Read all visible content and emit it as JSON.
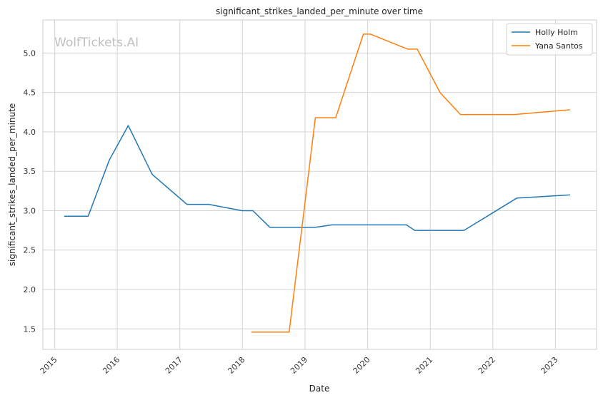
{
  "chart_data": {
    "type": "line",
    "title": "significant_strikes_landed_per_minute over time",
    "xlabel": "Date",
    "ylabel": "significant_strikes_landed_per_minute",
    "watermark": "WolfTickets.AI",
    "x_ticks": [
      "2015",
      "2016",
      "2017",
      "2018",
      "2019",
      "2020",
      "2021",
      "2022",
      "2023"
    ],
    "y_ticks": [
      "1.5",
      "2.0",
      "2.5",
      "3.0",
      "3.5",
      "4.0",
      "4.5",
      "5.0"
    ],
    "xlim": [
      "2014-10-24",
      "2023-08-29"
    ],
    "ylim": [
      1.24,
      5.42
    ],
    "grid": true,
    "legend_position": "top-right",
    "series": [
      {
        "name": "Holly Holm",
        "color": "#1f77b4",
        "points": [
          [
            "2015-02-28",
            2.93
          ],
          [
            "2015-07-15",
            2.93
          ],
          [
            "2015-11-15",
            3.64
          ],
          [
            "2016-03-05",
            4.08
          ],
          [
            "2016-07-23",
            3.46
          ],
          [
            "2017-02-11",
            3.08
          ],
          [
            "2017-06-17",
            3.08
          ],
          [
            "2017-12-30",
            3.0
          ],
          [
            "2018-03-03",
            3.0
          ],
          [
            "2018-06-09",
            2.79
          ],
          [
            "2018-10-06",
            2.79
          ],
          [
            "2019-03-02",
            2.79
          ],
          [
            "2019-06-08",
            2.82
          ],
          [
            "2019-12-14",
            2.82
          ],
          [
            "2020-08-15",
            2.82
          ],
          [
            "2020-10-03",
            2.75
          ],
          [
            "2021-07-17",
            2.75
          ],
          [
            "2022-05-21",
            3.16
          ],
          [
            "2023-03-25",
            3.2
          ]
        ]
      },
      {
        "name": "Yana Santos",
        "color": "#ff7f0e",
        "points": [
          [
            "2018-02-24",
            1.46
          ],
          [
            "2018-09-30",
            1.46
          ],
          [
            "2019-03-02",
            4.18
          ],
          [
            "2019-06-29",
            4.18
          ],
          [
            "2019-12-07",
            5.24
          ],
          [
            "2020-01-18",
            5.24
          ],
          [
            "2020-08-22",
            5.05
          ],
          [
            "2020-10-17",
            5.05
          ],
          [
            "2021-02-27",
            4.5
          ],
          [
            "2021-06-26",
            4.22
          ],
          [
            "2022-05-07",
            4.22
          ],
          [
            "2023-03-25",
            4.28
          ]
        ]
      }
    ]
  }
}
